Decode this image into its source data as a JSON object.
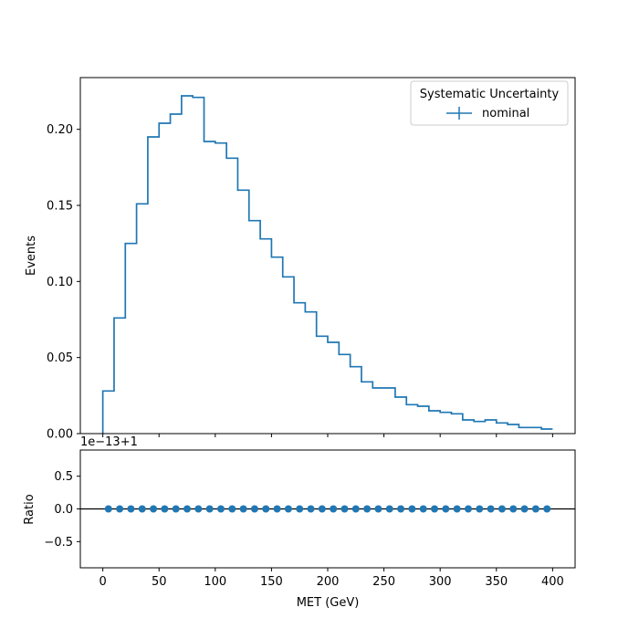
{
  "chart_data": [
    {
      "type": "step",
      "panel": "main",
      "xlim": [
        -20,
        420
      ],
      "ylim": [
        0,
        0.234
      ],
      "ylabel": "Events",
      "xlabel": "",
      "yticks": [
        0.0,
        0.05,
        0.1,
        0.15,
        0.2
      ],
      "ytick_labels": [
        "0.00",
        "0.05",
        "0.10",
        "0.15",
        "0.20"
      ],
      "xticks": [
        0,
        50,
        100,
        150,
        200,
        250,
        300,
        350,
        400
      ],
      "legend": {
        "title": "Systematic Uncertainty",
        "placement": "top-right",
        "entries": [
          "nominal"
        ]
      },
      "bin_edges": [
        0,
        10,
        20,
        30,
        40,
        50,
        60,
        70,
        80,
        90,
        100,
        110,
        120,
        130,
        140,
        150,
        160,
        170,
        180,
        190,
        200,
        210,
        220,
        230,
        240,
        250,
        260,
        270,
        280,
        290,
        300,
        310,
        320,
        330,
        340,
        350,
        360,
        370,
        380,
        390,
        400
      ],
      "series": [
        {
          "name": "nominal",
          "color": "#1f77b4",
          "values": [
            0.028,
            0.076,
            0.125,
            0.151,
            0.195,
            0.204,
            0.21,
            0.222,
            0.221,
            0.192,
            0.191,
            0.181,
            0.16,
            0.14,
            0.128,
            0.116,
            0.103,
            0.086,
            0.08,
            0.064,
            0.06,
            0.052,
            0.044,
            0.034,
            0.03,
            0.03,
            0.024,
            0.019,
            0.018,
            0.015,
            0.014,
            0.013,
            0.009,
            0.008,
            0.009,
            0.007,
            0.006,
            0.004,
            0.004,
            0.003
          ]
        }
      ]
    },
    {
      "type": "scatter",
      "panel": "ratio",
      "xlim": [
        -20,
        420
      ],
      "ylim": [
        -0.9,
        0.9
      ],
      "ylabel": "Ratio",
      "xlabel": "MET (GeV)",
      "offset_label": "1e−13+1",
      "yticks": [
        -0.5,
        0.0,
        0.5
      ],
      "ytick_labels": [
        "−0.5",
        "0.0",
        "0.5"
      ],
      "xticks": [
        0,
        50,
        100,
        150,
        200,
        250,
        300,
        350,
        400
      ],
      "xtick_labels": [
        "0",
        "50",
        "100",
        "150",
        "200",
        "250",
        "300",
        "350",
        "400"
      ],
      "reference_line": 0.0,
      "series": [
        {
          "name": "nominal",
          "color": "#1f77b4",
          "x": [
            5,
            15,
            25,
            35,
            45,
            55,
            65,
            75,
            85,
            95,
            105,
            115,
            125,
            135,
            145,
            155,
            165,
            175,
            185,
            195,
            205,
            215,
            225,
            235,
            245,
            255,
            265,
            275,
            285,
            295,
            305,
            315,
            325,
            335,
            345,
            355,
            365,
            375,
            385,
            395
          ],
          "values": [
            0,
            0,
            0,
            0,
            0,
            0,
            0,
            0,
            0,
            0,
            0,
            0,
            0,
            0,
            0,
            0,
            0,
            0,
            0,
            0,
            0,
            0,
            0,
            0,
            0,
            0,
            0,
            0,
            0,
            0,
            0,
            0,
            0,
            0,
            0,
            0,
            0,
            0,
            0,
            0
          ]
        }
      ]
    }
  ]
}
